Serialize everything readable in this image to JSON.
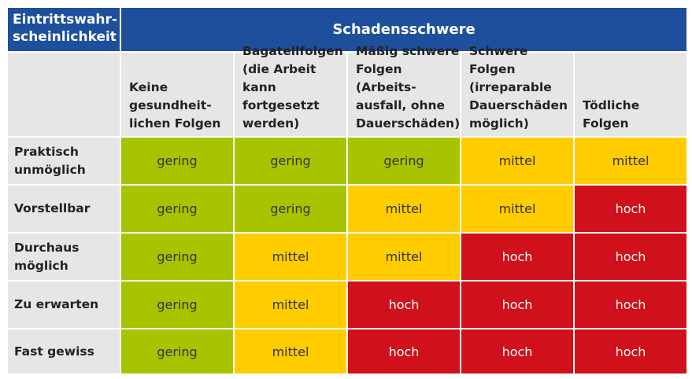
{
  "table": {
    "corner_label": "Eintrittswahr-\nscheinlichkeit",
    "header_title": "Schadensschwere",
    "columns": [
      "",
      "Keine\ngesundheit-\nlichen Folgen",
      "Bagatellfolgen\n(die Arbeit kann\nfortgesetzt\nwerden)",
      "Mäßig schwere\nFolgen (Arbeits-\nausfall, ohne\nDauerschäden)",
      "Schwere Folgen\n(irreparable\nDauerschäden\nmöglich)",
      "Tödliche Folgen"
    ],
    "rows": [
      {
        "label": "Praktisch\nunmöglich",
        "cells": [
          "gering",
          "gering",
          "gering",
          "mittel",
          "mittel"
        ]
      },
      {
        "label": "Vorstellbar",
        "cells": [
          "gering",
          "gering",
          "mittel",
          "mittel",
          "hoch"
        ]
      },
      {
        "label": "Durchaus\nmöglich",
        "cells": [
          "gering",
          "mittel",
          "mittel",
          "hoch",
          "hoch"
        ]
      },
      {
        "label": "Zu erwarten",
        "cells": [
          "gering",
          "mittel",
          "hoch",
          "hoch",
          "hoch"
        ]
      },
      {
        "label": "Fast gewiss",
        "cells": [
          "gering",
          "mittel",
          "hoch",
          "hoch",
          "hoch"
        ]
      }
    ]
  },
  "colors": {
    "header_blue": "#1e4f9c",
    "label_gray": "#e6e6e6",
    "gering": "#a8c400",
    "mittel": "#ffcc00",
    "hoch": "#d0101a"
  }
}
